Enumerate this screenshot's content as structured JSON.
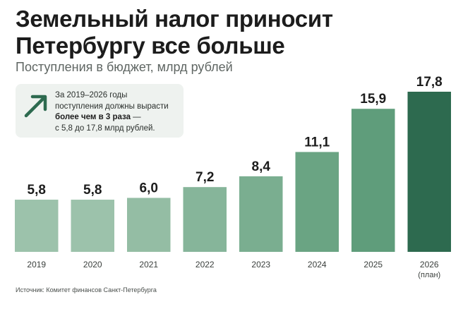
{
  "header": {
    "title_line1": "Земельный налог приносит",
    "title_line2": "Петербургу все больше",
    "subtitle": "Поступления в бюджет, млрд рублей"
  },
  "callout": {
    "line1": "За 2019–2026 годы",
    "line2": "поступления должны вырасти",
    "line3_bold": "более чем в 3 раза",
    "line3_rest": " —",
    "line4": "с 5,8 до 17,8 млрд рублей.",
    "icon": "arrow-up-right-icon"
  },
  "source": "Источник: Комитет финансов Санкт-Петербурга",
  "colors": {
    "bar_light": "#9cc2ab",
    "bar_mid": "#5f9d7b",
    "bar_dark": "#2d6a4f",
    "arrow": "#2d6a4f"
  },
  "chart_data": {
    "type": "bar",
    "title": "Земельный налог приносит Петербургу все больше",
    "subtitle": "Поступления в бюджет, млрд рублей",
    "xlabel": "",
    "ylabel": "",
    "ylim": [
      0,
      17.8
    ],
    "grid": false,
    "categories": [
      "2019",
      "2020",
      "2021",
      "2022",
      "2023",
      "2024",
      "2025",
      "2026"
    ],
    "category_notes": [
      "",
      "",
      "",
      "",
      "",
      "",
      "",
      "(план)"
    ],
    "values": [
      5.8,
      5.8,
      6.0,
      7.2,
      8.4,
      11.1,
      15.9,
      17.8
    ],
    "value_labels": [
      "5,8",
      "5,8",
      "6,0",
      "7,2",
      "8,4",
      "11,1",
      "15,9",
      "17,8"
    ],
    "bar_colors": [
      "#9cc2ab",
      "#9cc2ab",
      "#94bda4",
      "#86b59a",
      "#7aae90",
      "#6aa483",
      "#5f9d7b",
      "#2d6a4f"
    ]
  }
}
